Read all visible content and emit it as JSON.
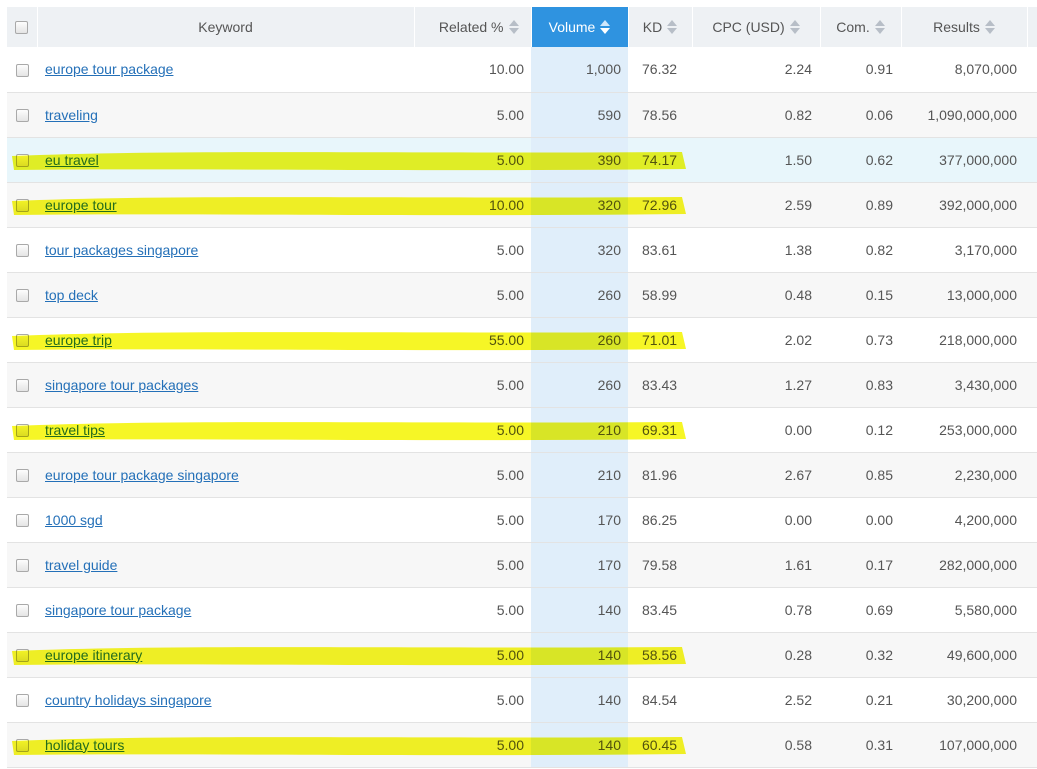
{
  "table": {
    "columns": [
      {
        "key": "keyword",
        "label": "Keyword",
        "sortable": false
      },
      {
        "key": "related",
        "label": "Related %",
        "sortable": true
      },
      {
        "key": "volume",
        "label": "Volume",
        "sortable": true,
        "active": true
      },
      {
        "key": "kd",
        "label": "KD",
        "sortable": true
      },
      {
        "key": "cpc",
        "label": "CPC (USD)",
        "sortable": true
      },
      {
        "key": "com",
        "label": "Com.",
        "sortable": true
      },
      {
        "key": "results",
        "label": "Results",
        "sortable": true
      }
    ],
    "rows": [
      {
        "keyword": "europe tour package",
        "related": "10.00",
        "volume": "1,000",
        "kd": "76.32",
        "cpc": "2.24",
        "com": "0.91",
        "results": "8,070,000",
        "highlighted": false
      },
      {
        "keyword": "traveling",
        "related": "5.00",
        "volume": "590",
        "kd": "78.56",
        "cpc": "0.82",
        "com": "0.06",
        "results": "1,090,000,000",
        "highlighted": false
      },
      {
        "keyword": "eu travel",
        "related": "5.00",
        "volume": "390",
        "kd": "74.17",
        "cpc": "1.50",
        "com": "0.62",
        "results": "377,000,000",
        "highlighted": true,
        "hover": true
      },
      {
        "keyword": "europe tour",
        "related": "10.00",
        "volume": "320",
        "kd": "72.96",
        "cpc": "2.59",
        "com": "0.89",
        "results": "392,000,000",
        "highlighted": true
      },
      {
        "keyword": "tour packages singapore",
        "related": "5.00",
        "volume": "320",
        "kd": "83.61",
        "cpc": "1.38",
        "com": "0.82",
        "results": "3,170,000",
        "highlighted": false
      },
      {
        "keyword": "top deck",
        "related": "5.00",
        "volume": "260",
        "kd": "58.99",
        "cpc": "0.48",
        "com": "0.15",
        "results": "13,000,000",
        "highlighted": false
      },
      {
        "keyword": "europe trip",
        "related": "55.00",
        "volume": "260",
        "kd": "71.01",
        "cpc": "2.02",
        "com": "0.73",
        "results": "218,000,000",
        "highlighted": true
      },
      {
        "keyword": "singapore tour packages",
        "related": "5.00",
        "volume": "260",
        "kd": "83.43",
        "cpc": "1.27",
        "com": "0.83",
        "results": "3,430,000",
        "highlighted": false
      },
      {
        "keyword": "travel tips",
        "related": "5.00",
        "volume": "210",
        "kd": "69.31",
        "cpc": "0.00",
        "com": "0.12",
        "results": "253,000,000",
        "highlighted": true
      },
      {
        "keyword": "europe tour package singapore",
        "related": "5.00",
        "volume": "210",
        "kd": "81.96",
        "cpc": "2.67",
        "com": "0.85",
        "results": "2,230,000",
        "highlighted": false
      },
      {
        "keyword": "1000 sgd",
        "related": "5.00",
        "volume": "170",
        "kd": "86.25",
        "cpc": "0.00",
        "com": "0.00",
        "results": "4,200,000",
        "highlighted": false
      },
      {
        "keyword": "travel guide",
        "related": "5.00",
        "volume": "170",
        "kd": "79.58",
        "cpc": "1.61",
        "com": "0.17",
        "results": "282,000,000",
        "highlighted": false
      },
      {
        "keyword": "singapore tour package",
        "related": "5.00",
        "volume": "140",
        "kd": "83.45",
        "cpc": "0.78",
        "com": "0.69",
        "results": "5,580,000",
        "highlighted": false
      },
      {
        "keyword": "europe itinerary",
        "related": "5.00",
        "volume": "140",
        "kd": "58.56",
        "cpc": "0.28",
        "com": "0.32",
        "results": "49,600,000",
        "highlighted": true
      },
      {
        "keyword": "country holidays singapore",
        "related": "5.00",
        "volume": "140",
        "kd": "84.54",
        "cpc": "2.52",
        "com": "0.21",
        "results": "30,200,000",
        "highlighted": false
      },
      {
        "keyword": "holiday tours",
        "related": "5.00",
        "volume": "140",
        "kd": "60.45",
        "cpc": "0.58",
        "com": "0.31",
        "results": "107,000,000",
        "highlighted": true
      }
    ]
  },
  "colors": {
    "active_header": "#2f93e0",
    "link": "#2470b8",
    "volume_column_bg": "#e0eefa",
    "hover_row_bg": "#e8f6fb",
    "highlighter": "#f5f500"
  }
}
